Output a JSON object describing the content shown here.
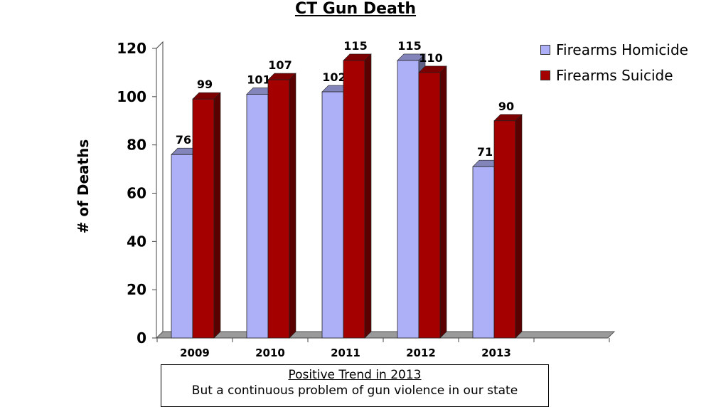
{
  "chart_data": {
    "type": "bar",
    "title": "CT Gun Death",
    "ylabel": "# of Deaths",
    "xlabel": "",
    "categories": [
      "2009",
      "2010",
      "2011",
      "2012",
      "2013"
    ],
    "series": [
      {
        "name": "Firearms Homicide",
        "values": [
          76,
          101,
          102,
          115,
          71
        ],
        "color": "#aeb0f7"
      },
      {
        "name": "Firearms Suicide",
        "values": [
          99,
          107,
          115,
          110,
          90
        ],
        "color": "#a50000"
      }
    ],
    "ylim": [
      0,
      120
    ],
    "yticks": [
      "0",
      "20",
      "40",
      "60",
      "80",
      "100",
      "120"
    ],
    "legend_position": "top-right",
    "grid": false,
    "style": "3d"
  },
  "note": {
    "line1": "Positive Trend in 2013",
    "line2": "But a continuous problem of gun violence in our state"
  }
}
